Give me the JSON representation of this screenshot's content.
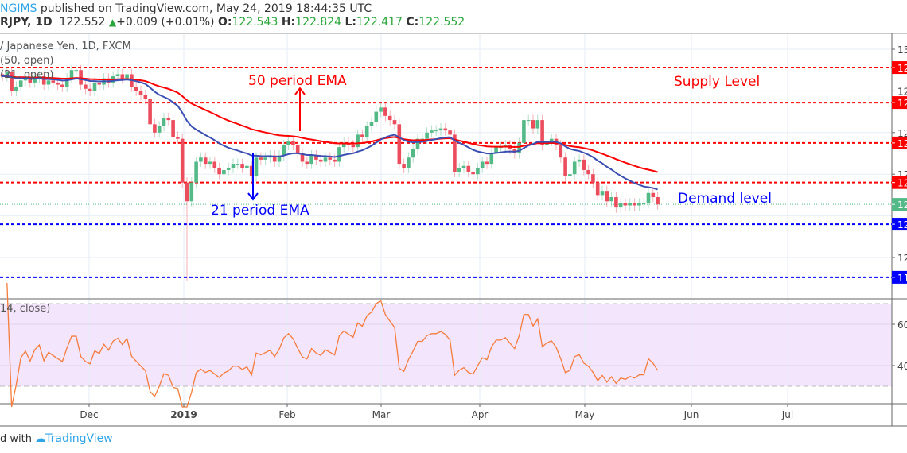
{
  "header": {
    "author": "NGIMS",
    "published": "published on TradingView.com, May 24, 2019 18:44:35 UTC"
  },
  "quote": {
    "symbol": "RJPY, 1D",
    "last": "122.552",
    "change": "+0.009 (+0.01%)",
    "o_label": "O:",
    "o": "122.543",
    "h_label": "H:",
    "h": "122.824",
    "l_label": "L:",
    "l": "122.417",
    "c_label": "C:",
    "c": "122.552",
    "up_color": "#2aa63a"
  },
  "legend": {
    "title": "/ Japanese Yen, 1D, FXCM",
    "ema50": "(50, open)",
    "ema21": "(21, open)"
  },
  "rsi_title": "14, close)",
  "annotations": {
    "ema50": "50 period EMA",
    "ema21": "21 period EMA",
    "supply": "Supply Level",
    "demand": "Demand level"
  },
  "footer": {
    "prefix": "d with",
    "brand": "TradingView"
  },
  "chart_data": {
    "type": "candlestick",
    "price_ylim": [
      118.5,
      131
    ],
    "price_ticks": [
      {
        "value": 130,
        "label": "13"
      },
      {
        "value": 128,
        "label": "12"
      },
      {
        "value": 126,
        "label": "12"
      },
      {
        "value": 124,
        "label": "12"
      },
      {
        "value": 120,
        "label": "12"
      }
    ],
    "levels": [
      {
        "value": 129.12,
        "label": "12",
        "color": "#ff0000",
        "kind": "supply"
      },
      {
        "value": 127.44,
        "label": "12",
        "color": "#ff0000",
        "kind": "supply"
      },
      {
        "value": 125.5,
        "label": "12",
        "color": "#ff0000",
        "kind": "supply"
      },
      {
        "value": 123.6,
        "label": "12",
        "color": "#ff0000",
        "kind": "supply"
      },
      {
        "value": 121.6,
        "label": "12",
        "color": "#0000ff",
        "kind": "demand"
      },
      {
        "value": 119.05,
        "label": "11",
        "color": "#0000ff",
        "kind": "demand"
      }
    ],
    "last_price": {
      "value": 122.552,
      "label": "12",
      "color": "#53b987"
    },
    "colors": {
      "up": "#53b987",
      "down": "#eb4d5c",
      "ema50": "#ff0000",
      "ema21": "#3c50b4",
      "rsi": "#f57c3b",
      "rsi_band": "#f3e5fc"
    },
    "time_ticks": [
      "Dec",
      "2019",
      "Feb",
      "Mar",
      "Apr",
      "May",
      "Jun",
      "Jul"
    ],
    "flash_crash_low": 118.9,
    "close": [
      128.7,
      128.9,
      128.0,
      128.2,
      128.5,
      128.6,
      128.4,
      128.6,
      128.7,
      128.3,
      128.5,
      128.4,
      128.3,
      128.2,
      128.6,
      129.0,
      129.0,
      128.3,
      128.1,
      128.0,
      128.4,
      128.3,
      128.6,
      128.4,
      128.7,
      128.8,
      128.6,
      128.8,
      128.2,
      128.0,
      127.8,
      127.6,
      126.4,
      126.0,
      126.3,
      126.7,
      126.6,
      125.8,
      125.7,
      123.6,
      122.7,
      123.6,
      124.6,
      124.8,
      124.5,
      124.6,
      124.3,
      124.0,
      124.2,
      124.3,
      124.5,
      124.5,
      124.3,
      124.4,
      123.9,
      124.8,
      124.7,
      124.8,
      124.9,
      124.6,
      124.9,
      125.4,
      125.6,
      125.4,
      125.0,
      124.6,
      124.5,
      124.9,
      124.7,
      124.6,
      124.8,
      124.7,
      124.6,
      125.3,
      125.5,
      125.4,
      125.3,
      125.9,
      125.8,
      126.3,
      126.5,
      127.0,
      127.2,
      126.8,
      126.6,
      126.4,
      124.5,
      124.3,
      124.8,
      125.2,
      125.7,
      125.7,
      126.0,
      126.1,
      126.1,
      126.2,
      126.1,
      125.9,
      124.1,
      124.3,
      124.4,
      124.1,
      124.0,
      124.3,
      124.6,
      124.5,
      125.0,
      125.3,
      125.3,
      125.4,
      125.2,
      125.0,
      125.5,
      126.6,
      126.6,
      126.2,
      126.6,
      125.4,
      125.6,
      125.7,
      125.4,
      124.8,
      123.9,
      124.0,
      124.6,
      124.7,
      124.2,
      124.0,
      123.6,
      123.0,
      123.2,
      122.7,
      122.9,
      122.4,
      122.6,
      122.5,
      122.6,
      122.5,
      122.6,
      122.6,
      123.1,
      122.9,
      122.55
    ],
    "rsi": {
      "period": 14,
      "ylim": [
        20,
        80
      ],
      "ticks": [
        60,
        40
      ],
      "band": [
        30,
        70
      ]
    }
  }
}
